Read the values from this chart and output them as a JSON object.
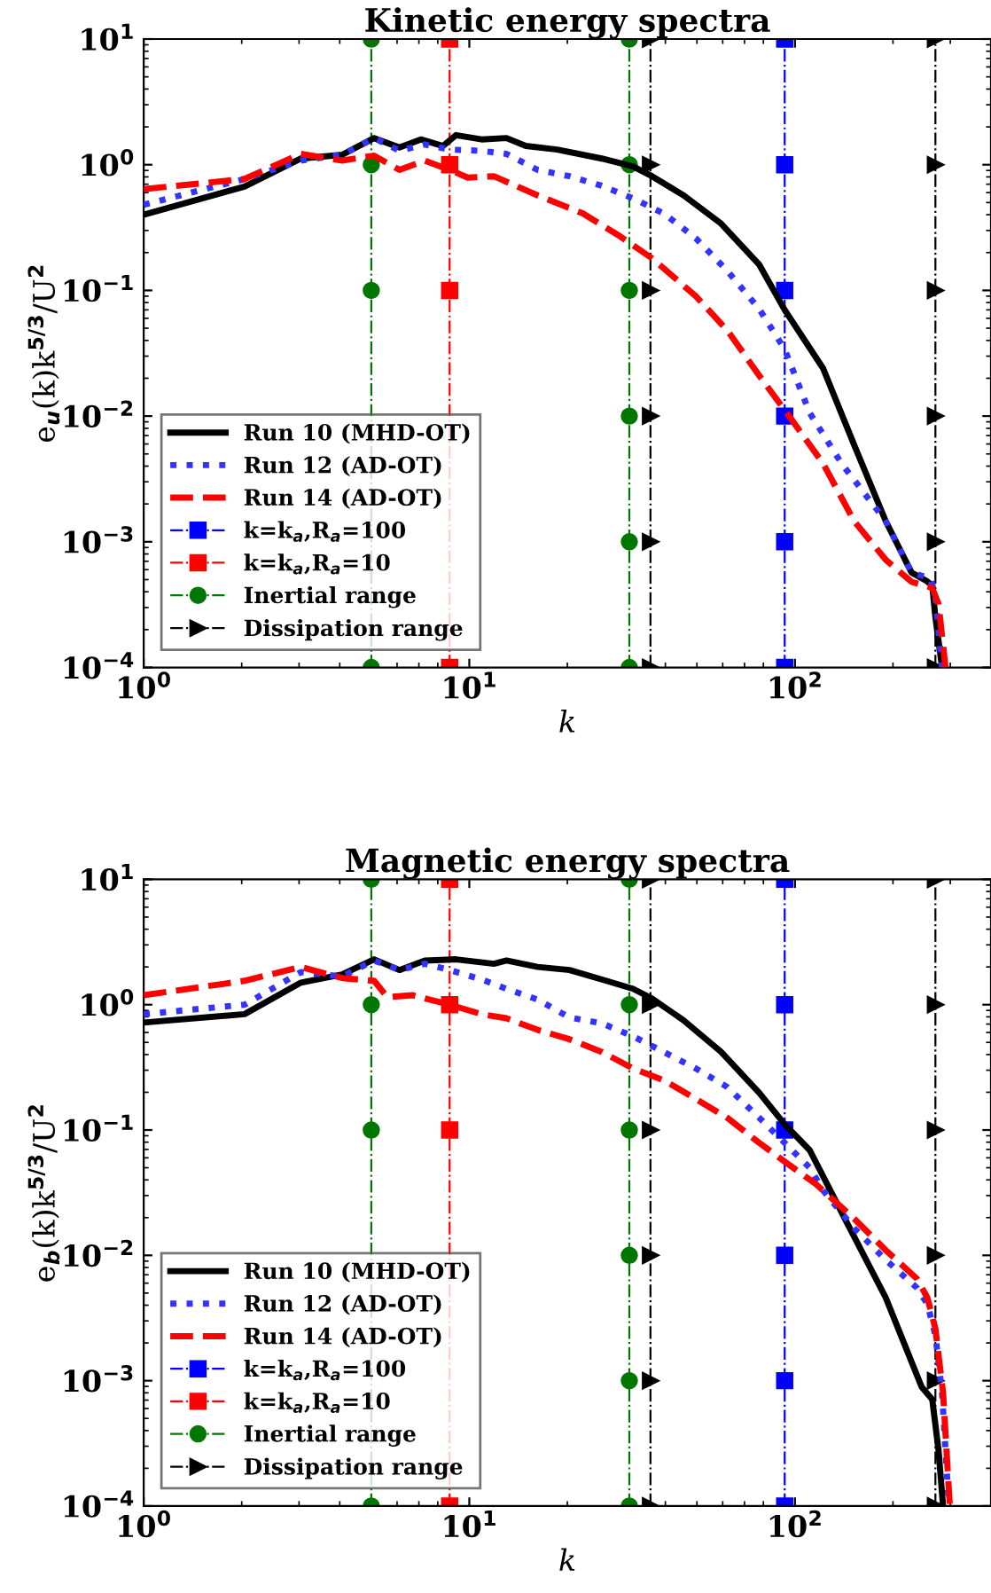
{
  "chart_data": [
    {
      "type": "line",
      "title": "Kinetic energy spectra",
      "xlabel": "k",
      "ylabel": "e$_{u}$(k)k$^{5/3}$/U$^{2}$",
      "log": "xy",
      "grid": false,
      "legend": "bottom left",
      "xlim": [
        1,
        400
      ],
      "xticks": [
        {
          "value": 1,
          "label": "10$^{0}$"
        },
        {
          "value": 10,
          "label": "10$^{1}$"
        },
        {
          "value": 100,
          "label": "10$^{2}$"
        }
      ],
      "ylim": [
        0.0001,
        10
      ],
      "yticks": [
        {
          "value": 0.0001,
          "label": "10$^{−4}$"
        },
        {
          "value": 0.001,
          "label": "10$^{−3}$"
        },
        {
          "value": 0.01,
          "label": "10$^{−2}$"
        },
        {
          "value": 0.1,
          "label": "10$^{−1}$"
        },
        {
          "value": 1,
          "label": "10$^{0}$"
        },
        {
          "value": 10,
          "label": "10$^{1}$"
        }
      ],
      "series": [
        {
          "name": "Run 10 (MHD-OT)",
          "color": "#000000",
          "line_style": "solid",
          "marker": "none",
          "x": [
            1,
            2.04,
            3.04,
            4.07,
            5.1,
            6.1,
            7.1,
            8.3,
            9.1,
            10.9,
            13,
            14.9,
            18.6,
            25.5,
            31.8,
            36.4,
            45.5,
            59.3,
            77.7,
            93,
            122,
            152,
            190,
            228,
            253,
            264,
            270,
            283
          ],
          "values": [
            0.4,
            0.67,
            1.12,
            1.2,
            1.63,
            1.37,
            1.59,
            1.41,
            1.72,
            1.59,
            1.63,
            1.41,
            1.32,
            1.12,
            0.97,
            0.81,
            0.57,
            0.34,
            0.16,
            0.07,
            0.024,
            0.0059,
            0.00146,
            0.00057,
            0.00049,
            0.00045,
            0.00025,
            0.0001
          ]
        },
        {
          "name": "Run 12 (AD-OT)",
          "color": "#3333ff",
          "line_style": "dotted",
          "marker": "none",
          "x": [
            1,
            2.04,
            3.04,
            4.07,
            5.1,
            6.1,
            7.3,
            8.7,
            10.9,
            13,
            16.2,
            20.3,
            25.5,
            31.8,
            39.5,
            49.6,
            62,
            77.7,
            93,
            111,
            139,
            190,
            228,
            261,
            270,
            283
          ],
          "values": [
            0.48,
            0.77,
            1.08,
            1.2,
            1.63,
            1.29,
            1.45,
            1.32,
            1.29,
            1.22,
            0.91,
            0.81,
            0.68,
            0.54,
            0.41,
            0.26,
            0.143,
            0.071,
            0.034,
            0.0106,
            0.0042,
            0.00146,
            0.00057,
            0.00051,
            0.00036,
            0.0001
          ]
        },
        {
          "name": "Run 14 (AD-OT)",
          "color": "#ff0000",
          "line_style": "dashed",
          "marker": "none",
          "x": [
            1,
            2.04,
            3.04,
            4.07,
            5.1,
            6.1,
            7.3,
            8.7,
            9.9,
            11.9,
            16.2,
            22.3,
            29,
            36.4,
            49.6,
            62,
            77.7,
            97.6,
            122,
            152,
            190,
            228,
            264,
            276,
            290
          ],
          "values": [
            0.64,
            0.77,
            1.22,
            1.08,
            1.18,
            0.91,
            1.08,
            0.91,
            0.79,
            0.81,
            0.57,
            0.41,
            0.27,
            0.18,
            0.09,
            0.048,
            0.021,
            0.0094,
            0.0042,
            0.00146,
            0.00072,
            0.00048,
            0.00043,
            0.00032,
            0.0001
          ]
        },
        {
          "name": "k=k$_{a}$,R$_{a}$=100",
          "color": "#0000ff",
          "line_style": "dashdot",
          "marker": "square",
          "x": [
            93,
            93,
            93,
            93,
            93,
            93
          ],
          "values": [
            0.0001,
            0.001,
            0.01,
            0.1,
            1,
            10
          ]
        },
        {
          "name": "k=k$_{a}$,R$_{a}$=10",
          "color": "#ff0000",
          "line_style": "dashdot",
          "marker": "square",
          "x": [
            8.7,
            8.7,
            8.7,
            8.7
          ],
          "values": [
            0.0001,
            0.1,
            1,
            10
          ]
        },
        {
          "name": "Inertial range",
          "color": "#007700",
          "line_style": "dashdot",
          "marker": "circle",
          "x": [
            5,
            5,
            5,
            5
          ],
          "values": [
            0.0001,
            0.1,
            1,
            10
          ]
        },
        {
          "color": "#007700",
          "line_style": "dashdot",
          "marker": "circle",
          "x": [
            31,
            31,
            31,
            31,
            31,
            31
          ],
          "values": [
            0.0001,
            0.001,
            0.01,
            0.1,
            1,
            10
          ]
        },
        {
          "name": "Dissipation range",
          "color": "#000000",
          "line_style": "dashdot",
          "marker": "triangle",
          "x": [
            36,
            36,
            36,
            36,
            36,
            36
          ],
          "values": [
            0.0001,
            0.001,
            0.01,
            0.1,
            1,
            10
          ]
        },
        {
          "color": "#000000",
          "line_style": "dashdot",
          "marker": "triangle",
          "x": [
            270,
            270,
            270,
            270,
            270,
            270
          ],
          "values": [
            0.0001,
            0.001,
            0.01,
            0.1,
            1,
            10
          ]
        }
      ]
    },
    {
      "type": "line",
      "title": "Magnetic energy spectra",
      "xlabel": "k",
      "ylabel": "e$_{b}$(k)k$^{5/3}$/U$^{2}$",
      "log": "xy",
      "grid": false,
      "legend": "bottom left",
      "xlim": [
        1,
        400
      ],
      "xticks": [
        {
          "value": 1,
          "label": "10$^{0}$"
        },
        {
          "value": 10,
          "label": "10$^{1}$"
        },
        {
          "value": 100,
          "label": "10$^{2}$"
        }
      ],
      "ylim": [
        0.0001,
        10
      ],
      "yticks": [
        {
          "value": 0.0001,
          "label": "10$^{−4}$"
        },
        {
          "value": 0.001,
          "label": "10$^{−3}$"
        },
        {
          "value": 0.01,
          "label": "10$^{−2}$"
        },
        {
          "value": 0.1,
          "label": "10$^{−1}$"
        },
        {
          "value": 1,
          "label": "10$^{0}$"
        },
        {
          "value": 10,
          "label": "10$^{1}$"
        }
      ],
      "series": [
        {
          "name": "Run 10 (MHD-OT)",
          "color": "#000000",
          "line_style": "solid",
          "marker": "none",
          "x": [
            1,
            2.04,
            3.04,
            4.07,
            5.1,
            6.1,
            7.3,
            9.1,
            11.9,
            13,
            16.2,
            20.3,
            25.5,
            31.8,
            36.4,
            45.5,
            59.3,
            77.7,
            93,
            111,
            144,
            190,
            245,
            264,
            276,
            285
          ],
          "values": [
            0.72,
            0.84,
            1.5,
            1.74,
            2.3,
            1.89,
            2.25,
            2.3,
            2.12,
            2.25,
            2.0,
            1.89,
            1.59,
            1.34,
            1.12,
            0.75,
            0.42,
            0.198,
            0.111,
            0.069,
            0.0185,
            0.0046,
            0.00089,
            0.00071,
            0.00028,
            0.0001
          ]
        },
        {
          "name": "Run 12 (AD-OT)",
          "color": "#3333ff",
          "line_style": "dotted",
          "marker": "none",
          "x": [
            1,
            2.04,
            3.04,
            4.07,
            5.1,
            6.1,
            7.3,
            8.7,
            10.9,
            13,
            16.2,
            20.3,
            25.5,
            31.8,
            39.5,
            49.6,
            62,
            77.7,
            93,
            111,
            122,
            152,
            190,
            237,
            255,
            270,
            283,
            297
          ],
          "values": [
            0.84,
            1.0,
            1.82,
            1.68,
            2.25,
            1.89,
            2.12,
            1.89,
            1.59,
            1.34,
            1.1,
            0.79,
            0.71,
            0.56,
            0.42,
            0.31,
            0.22,
            0.125,
            0.079,
            0.05,
            0.033,
            0.0165,
            0.0092,
            0.0055,
            0.0041,
            0.0023,
            0.0008,
            0.0001
          ]
        },
        {
          "name": "Run 14 (AD-OT)",
          "color": "#ff0000",
          "line_style": "dashed",
          "marker": "none",
          "x": [
            1,
            2.04,
            3.04,
            4.07,
            5.1,
            5.6,
            6.7,
            8.7,
            10.9,
            13,
            16.2,
            20.3,
            25.5,
            31.8,
            39.5,
            49.6,
            62,
            77.7,
            93,
            116,
            152,
            190,
            237,
            255,
            270,
            285,
            299
          ],
          "values": [
            1.19,
            1.55,
            2.0,
            1.63,
            1.55,
            1.15,
            1.19,
            1.0,
            0.84,
            0.78,
            0.63,
            0.53,
            0.42,
            0.31,
            0.25,
            0.177,
            0.125,
            0.079,
            0.056,
            0.037,
            0.0196,
            0.011,
            0.0065,
            0.0046,
            0.0026,
            0.0008,
            0.0001
          ]
        },
        {
          "name": "k=k$_{a}$,R$_{a}$=100",
          "color": "#0000ff",
          "line_style": "dashdot",
          "marker": "square",
          "x": [
            93,
            93,
            93,
            93,
            93,
            93
          ],
          "values": [
            0.0001,
            0.001,
            0.01,
            0.1,
            1,
            10
          ]
        },
        {
          "name": "k=k$_{a}$,R$_{a}$=10",
          "color": "#ff0000",
          "line_style": "dashdot",
          "marker": "square",
          "x": [
            8.7,
            8.7,
            8.7,
            8.7
          ],
          "values": [
            0.0001,
            0.1,
            1,
            10
          ]
        },
        {
          "name": "Inertial range",
          "color": "#007700",
          "line_style": "dashdot",
          "marker": "circle",
          "x": [
            5,
            5,
            5,
            5
          ],
          "values": [
            0.0001,
            0.1,
            1,
            10
          ]
        },
        {
          "color": "#007700",
          "line_style": "dashdot",
          "marker": "circle",
          "x": [
            31,
            31,
            31,
            31,
            31,
            31
          ],
          "values": [
            0.0001,
            0.001,
            0.01,
            0.1,
            1,
            10
          ]
        },
        {
          "name": "Dissipation range",
          "color": "#000000",
          "line_style": "dashdot",
          "marker": "triangle",
          "x": [
            36,
            36,
            36,
            36,
            36,
            36
          ],
          "values": [
            0.0001,
            0.001,
            0.01,
            0.1,
            1,
            10
          ]
        },
        {
          "color": "#000000",
          "line_style": "dashdot",
          "marker": "triangle",
          "x": [
            270,
            270,
            270,
            270,
            270,
            270
          ],
          "values": [
            0.0001,
            0.001,
            0.01,
            0.1,
            1,
            10
          ]
        }
      ]
    }
  ]
}
